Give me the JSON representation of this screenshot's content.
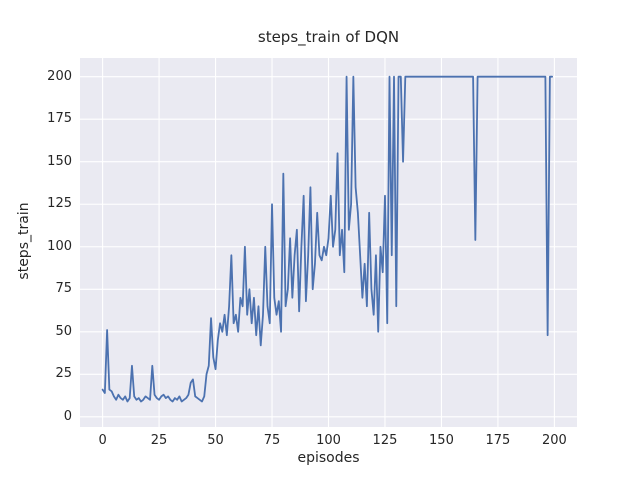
{
  "chart_data": {
    "type": "line",
    "title": "steps_train of DQN",
    "xlabel": "episodes",
    "ylabel": "steps_train",
    "xlim": [
      -10,
      210
    ],
    "ylim": [
      -6,
      211
    ],
    "xticks": [
      0,
      25,
      50,
      75,
      100,
      125,
      150,
      175,
      200
    ],
    "yticks": [
      0,
      25,
      50,
      75,
      100,
      125,
      150,
      175,
      200
    ],
    "grid": true,
    "legend": "none",
    "line_color": "#4c72b0",
    "plot_background": "#eaeaf2",
    "grid_color": "#ffffff",
    "series_name": "steps_train",
    "x_is_index": true,
    "values": [
      16,
      14,
      51,
      16,
      15,
      12,
      10,
      13,
      11,
      10,
      12,
      9,
      11,
      30,
      12,
      10,
      11,
      9,
      10,
      12,
      11,
      10,
      30,
      13,
      11,
      10,
      12,
      13,
      11,
      12,
      10,
      9,
      11,
      10,
      12,
      9,
      10,
      11,
      13,
      20,
      22,
      12,
      11,
      10,
      9,
      12,
      25,
      30,
      58,
      35,
      28,
      45,
      55,
      50,
      60,
      48,
      65,
      95,
      55,
      60,
      50,
      70,
      65,
      100,
      60,
      75,
      55,
      70,
      48,
      65,
      42,
      60,
      100,
      65,
      55,
      125,
      70,
      60,
      68,
      50,
      143,
      65,
      75,
      105,
      70,
      95,
      110,
      62,
      100,
      130,
      68,
      95,
      135,
      75,
      90,
      120,
      95,
      92,
      100,
      95,
      105,
      130,
      100,
      110,
      155,
      95,
      110,
      85,
      200,
      110,
      125,
      200,
      135,
      120,
      95,
      70,
      90,
      65,
      120,
      75,
      60,
      95,
      50,
      100,
      85,
      130,
      55,
      200,
      95,
      200,
      65,
      200,
      200,
      150,
      200,
      200,
      200,
      200,
      200,
      200,
      200,
      200,
      200,
      200,
      200,
      200,
      200,
      200,
      200,
      200,
      200,
      200,
      200,
      200,
      200,
      200,
      200,
      200,
      200,
      200,
      200,
      200,
      200,
      200,
      200,
      104,
      200,
      200,
      200,
      200,
      200,
      200,
      200,
      200,
      200,
      200,
      200,
      200,
      200,
      200,
      200,
      200,
      200,
      200,
      200,
      200,
      200,
      200,
      200,
      200,
      200,
      200,
      200,
      200,
      200,
      200,
      200,
      48,
      200,
      200
    ]
  }
}
